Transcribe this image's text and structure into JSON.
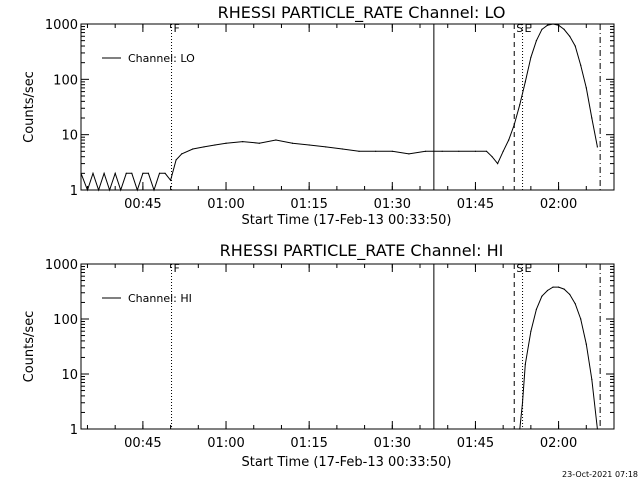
{
  "footer": {
    "timestamp": "23-Oct-2021 07:18"
  },
  "chart_data": [
    {
      "type": "line",
      "title": "RHESSI PARTICLE_RATE Channel: LO",
      "xlabel": "Start Time (17-Feb-13 00:33:50)",
      "ylabel": "Counts/sec",
      "y_scale": "log",
      "ylim": [
        1,
        1000
      ],
      "xlim": [
        "00:33:50",
        "02:10:00"
      ],
      "x_ticks": [
        "00:45",
        "01:00",
        "01:15",
        "01:30",
        "01:45",
        "02:00"
      ],
      "y_ticks": [
        "1",
        "10",
        "100",
        "1000"
      ],
      "legend": {
        "position": "top-left",
        "entries": [
          "Channel: LO"
        ]
      },
      "vertical_markers": [
        {
          "time": "00:50:10",
          "style": "dotted",
          "label": "F"
        },
        {
          "time": "01:37:30",
          "style": "solid",
          "label": ""
        },
        {
          "time": "01:52:00",
          "style": "dashed",
          "label": "S"
        },
        {
          "time": "01:53:30",
          "style": "dotted",
          "label": "E"
        },
        {
          "time": "02:07:30",
          "style": "dashdot",
          "label": ""
        }
      ],
      "series": [
        {
          "name": "Channel: LO",
          "x": [
            "00:33:50",
            "00:35:00",
            "00:36:00",
            "00:37:00",
            "00:38:00",
            "00:39:00",
            "00:40:00",
            "00:41:00",
            "00:42:00",
            "00:43:00",
            "00:44:00",
            "00:45:00",
            "00:46:00",
            "00:47:00",
            "00:48:00",
            "00:49:00",
            "00:50:00",
            "00:51:00",
            "00:52:00",
            "00:54:00",
            "00:56:00",
            "00:58:00",
            "01:00:00",
            "01:03:00",
            "01:06:00",
            "01:09:00",
            "01:12:00",
            "01:15:00",
            "01:18:00",
            "01:21:00",
            "01:24:00",
            "01:27:00",
            "01:30:00",
            "01:33:00",
            "01:36:00",
            "01:39:00",
            "01:42:00",
            "01:45:00",
            "01:47:00",
            "01:48:00",
            "01:49:00",
            "01:50:00",
            "01:51:00",
            "01:52:00",
            "01:53:00",
            "01:54:00",
            "01:55:00",
            "01:56:00",
            "01:57:00",
            "01:58:00",
            "01:59:00",
            "02:00:00",
            "02:01:00",
            "02:02:00",
            "02:03:00",
            "02:04:00",
            "02:05:00",
            "02:06:00",
            "02:07:00"
          ],
          "y": [
            2,
            1,
            2,
            1,
            2,
            1,
            2,
            1,
            2,
            2,
            1,
            2,
            2,
            1,
            2,
            2,
            1.5,
            3.5,
            4.5,
            5.5,
            6,
            6.5,
            7,
            7.5,
            7,
            8,
            7,
            6.5,
            6,
            5.5,
            5,
            5,
            5,
            4.5,
            5,
            5,
            5,
            5,
            5,
            4,
            3,
            5,
            8,
            15,
            35,
            90,
            250,
            500,
            800,
            950,
            1000,
            950,
            800,
            600,
            400,
            180,
            70,
            20,
            6
          ]
        }
      ]
    },
    {
      "type": "line",
      "title": "RHESSI PARTICLE_RATE Channel: HI",
      "xlabel": "Start Time (17-Feb-13 00:33:50)",
      "ylabel": "Counts/sec",
      "y_scale": "log",
      "ylim": [
        1,
        1000
      ],
      "xlim": [
        "00:33:50",
        "02:10:00"
      ],
      "x_ticks": [
        "00:45",
        "01:00",
        "01:15",
        "01:30",
        "01:45",
        "02:00"
      ],
      "y_ticks": [
        "1",
        "10",
        "100",
        "1000"
      ],
      "legend": {
        "position": "top-left",
        "entries": [
          "Channel: HI"
        ]
      },
      "vertical_markers": [
        {
          "time": "00:50:10",
          "style": "dotted",
          "label": "F"
        },
        {
          "time": "01:37:30",
          "style": "solid",
          "label": ""
        },
        {
          "time": "01:52:00",
          "style": "dashed",
          "label": "S"
        },
        {
          "time": "01:53:30",
          "style": "dotted",
          "label": "E"
        },
        {
          "time": "02:07:30",
          "style": "dashdot",
          "label": ""
        }
      ],
      "series": [
        {
          "name": "Channel: HI",
          "x": [
            "01:53:00",
            "01:53:30",
            "01:54:00",
            "01:55:00",
            "01:56:00",
            "01:57:00",
            "01:58:00",
            "01:59:00",
            "02:00:00",
            "02:01:00",
            "02:02:00",
            "02:03:00",
            "02:04:00",
            "02:05:00",
            "02:06:00",
            "02:07:00"
          ],
          "y": [
            1,
            3,
            15,
            60,
            150,
            260,
            330,
            380,
            380,
            350,
            280,
            190,
            100,
            35,
            8,
            1
          ]
        }
      ]
    }
  ]
}
